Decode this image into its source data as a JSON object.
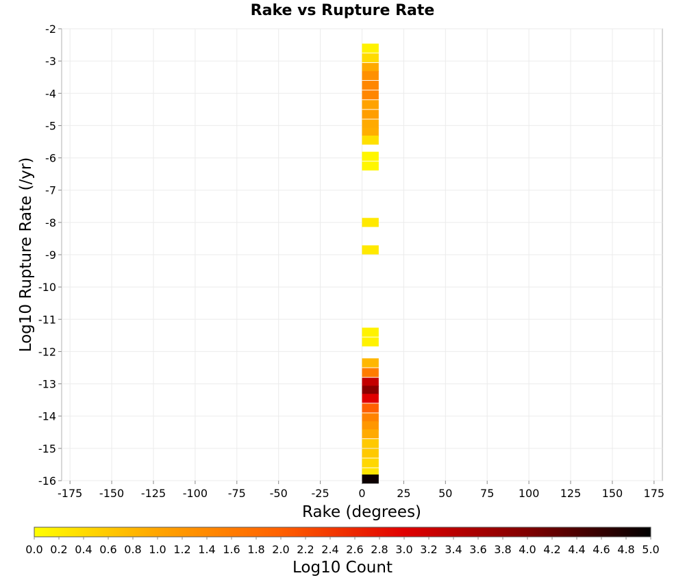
{
  "chart_data": {
    "type": "heatmap",
    "title": "Rake vs Rupture Rate",
    "xlabel": "Rake (degrees)",
    "ylabel": "Log10 Rupture Rate (/yr)",
    "xlim": [
      -180,
      180
    ],
    "ylim": [
      -16,
      -2
    ],
    "x_ticks": [
      -175,
      -150,
      -125,
      -100,
      -75,
      -50,
      -25,
      0,
      25,
      50,
      75,
      100,
      125,
      150,
      175
    ],
    "y_ticks": [
      -2,
      -3,
      -4,
      -5,
      -6,
      -7,
      -8,
      -9,
      -10,
      -11,
      -12,
      -13,
      -14,
      -15,
      -16
    ],
    "grid": true,
    "colorbar": {
      "label": "Log10 Count",
      "min": 0.0,
      "max": 5.0,
      "ticks": [
        "0.0",
        "0.2",
        "0.4",
        "0.6",
        "0.8",
        "1.0",
        "1.2",
        "1.4",
        "1.6",
        "1.8",
        "2.0",
        "2.2",
        "2.4",
        "2.6",
        "2.8",
        "3.0",
        "3.2",
        "3.4",
        "3.6",
        "3.8",
        "4.0",
        "4.2",
        "4.4",
        "4.6",
        "4.8",
        "5.0"
      ],
      "colors": [
        "#ffff00",
        "#ffa500",
        "#ff6000",
        "#e00000",
        "#800000",
        "#000000"
      ]
    },
    "bin_width_x": 10,
    "bin_height_y": 0.28,
    "cells": [
      {
        "x": 5,
        "y": -2.6,
        "v": 0.15
      },
      {
        "x": 5,
        "y": -2.9,
        "v": 0.4
      },
      {
        "x": 5,
        "y": -3.2,
        "v": 0.95
      },
      {
        "x": 5,
        "y": -3.45,
        "v": 1.3
      },
      {
        "x": 5,
        "y": -3.75,
        "v": 1.45
      },
      {
        "x": 5,
        "y": -4.05,
        "v": 1.45
      },
      {
        "x": 5,
        "y": -4.35,
        "v": 1.05
      },
      {
        "x": 5,
        "y": -4.65,
        "v": 1.1
      },
      {
        "x": 5,
        "y": -4.95,
        "v": 0.95
      },
      {
        "x": 5,
        "y": -5.2,
        "v": 0.9
      },
      {
        "x": 5,
        "y": -5.45,
        "v": 0.35
      },
      {
        "x": 5,
        "y": -5.95,
        "v": 0.1
      },
      {
        "x": 5,
        "y": -6.25,
        "v": 0.1
      },
      {
        "x": 5,
        "y": -8.0,
        "v": 0.25
      },
      {
        "x": 5,
        "y": -8.85,
        "v": 0.25
      },
      {
        "x": 5,
        "y": -11.4,
        "v": 0.15
      },
      {
        "x": 5,
        "y": -11.7,
        "v": 0.15
      },
      {
        "x": 5,
        "y": -12.35,
        "v": 0.8
      },
      {
        "x": 5,
        "y": -12.65,
        "v": 1.6
      },
      {
        "x": 5,
        "y": -12.95,
        "v": 3.3
      },
      {
        "x": 5,
        "y": -13.2,
        "v": 3.9
      },
      {
        "x": 5,
        "y": -13.45,
        "v": 3.0
      },
      {
        "x": 5,
        "y": -13.75,
        "v": 2.0
      },
      {
        "x": 5,
        "y": -14.05,
        "v": 1.5
      },
      {
        "x": 5,
        "y": -14.3,
        "v": 1.2
      },
      {
        "x": 5,
        "y": -14.55,
        "v": 0.95
      },
      {
        "x": 5,
        "y": -14.85,
        "v": 0.6
      },
      {
        "x": 5,
        "y": -15.15,
        "v": 0.6
      },
      {
        "x": 5,
        "y": -15.45,
        "v": 0.45
      },
      {
        "x": 5,
        "y": -15.75,
        "v": 0.3
      },
      {
        "x": 5,
        "y": -15.95,
        "v": 4.9
      }
    ]
  }
}
